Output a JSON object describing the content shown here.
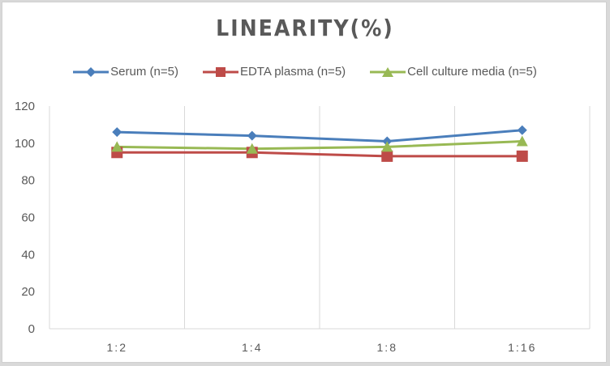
{
  "chart_data": {
    "type": "line",
    "title": "LINEARITY(%)",
    "xlabel": "",
    "ylabel": "",
    "categories": [
      "1:2",
      "1:4",
      "1:8",
      "1:16"
    ],
    "ylim": [
      0,
      120
    ],
    "yticks": [
      0,
      20,
      40,
      60,
      80,
      100,
      120
    ],
    "grid": "vertical",
    "legend_position": "top",
    "series": [
      {
        "name": "Serum (n=5)",
        "color": "#4a7ebb",
        "marker": "diamond",
        "values": [
          106,
          104,
          101,
          107
        ]
      },
      {
        "name": "EDTA plasma (n=5)",
        "color": "#be4b48",
        "marker": "square",
        "values": [
          95,
          95,
          93,
          93
        ]
      },
      {
        "name": "Cell culture media (n=5)",
        "color": "#98b954",
        "marker": "triangle",
        "values": [
          98,
          97,
          98,
          101
        ]
      }
    ]
  }
}
